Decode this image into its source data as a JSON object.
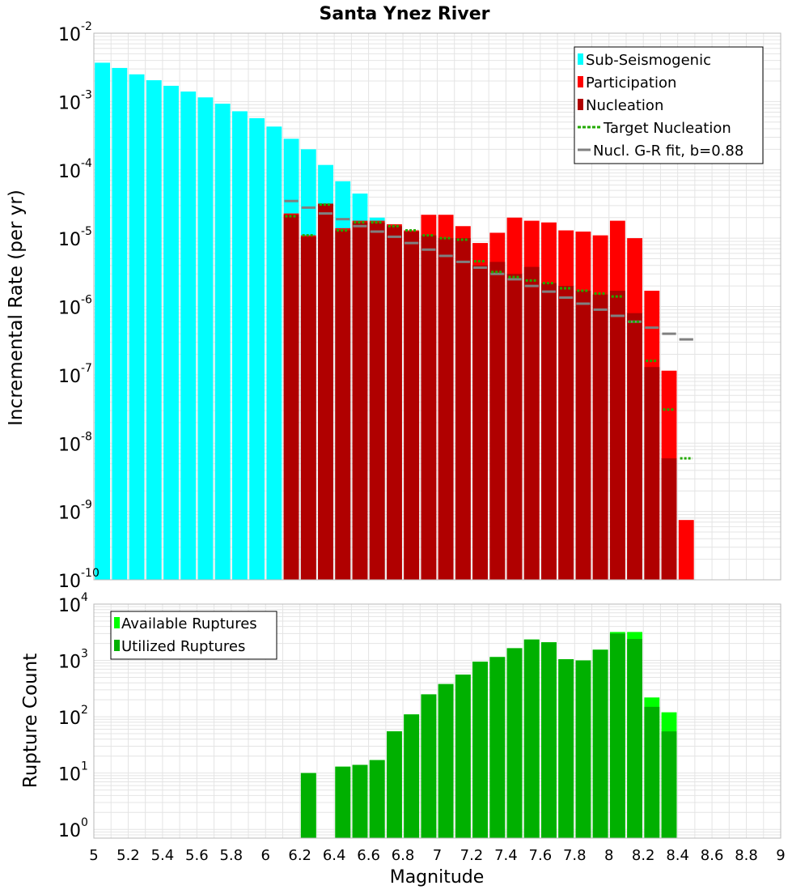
{
  "colors": {
    "sub_seismogenic": "#00ffff",
    "participation": "#ff0000",
    "nucleation": "#b00000",
    "target_nucleation": "#22aa00",
    "gr_fit": "#808080",
    "available": "#00ff00",
    "utilized": "#00b000",
    "grid": "#e4e4e4",
    "frame": "#b8b8b8"
  },
  "chart_data": [
    {
      "type": "bar",
      "title": "Santa Ynez River",
      "xlabel": "",
      "ylabel": "Incremental Rate (per yr)",
      "xlim": [
        5,
        9
      ],
      "ylim": [
        1e-10,
        0.01
      ],
      "yscale": "log",
      "grid": true,
      "legend_position": "top-right",
      "ytick_bases": [
        "10",
        "10",
        "10",
        "10",
        "10",
        "10",
        "10",
        "10",
        "10"
      ],
      "ytick_exponents": [
        "-10",
        "-9",
        "-8",
        "-7",
        "-6",
        "-5",
        "-4",
        "-3",
        "-2"
      ],
      "bin_width": 0.1,
      "series": [
        {
          "name": "Sub-Seismogenic",
          "x": [
            5.05,
            5.15,
            5.25,
            5.35,
            5.45,
            5.55,
            5.65,
            5.75,
            5.85,
            5.95,
            6.05,
            6.15,
            6.25,
            6.35,
            6.45,
            6.55,
            6.65
          ],
          "values": [
            0.0037,
            0.0031,
            0.0025,
            0.00205,
            0.0017,
            0.0014,
            0.00115,
            0.00093,
            0.00072,
            0.00057,
            0.00043,
            0.000285,
            0.0002,
            0.000118,
            6.8e-05,
            4.5e-05,
            2e-05
          ]
        },
        {
          "name": "Participation",
          "x": [
            6.15,
            6.25,
            6.35,
            6.45,
            6.55,
            6.65,
            6.75,
            6.85,
            6.95,
            7.05,
            7.15,
            7.25,
            7.35,
            7.45,
            7.55,
            7.65,
            7.75,
            7.85,
            7.95,
            8.05,
            8.15,
            8.25,
            8.35,
            8.45
          ],
          "values": [
            2.3e-05,
            1.1e-05,
            3.2e-05,
            1.4e-05,
            1.8e-05,
            1.8e-05,
            1.6e-05,
            1.3e-05,
            2.2e-05,
            2.2e-05,
            1.5e-05,
            8.5e-06,
            1.2e-05,
            2e-05,
            1.8e-05,
            1.7e-05,
            1.3e-05,
            1.25e-05,
            1.1e-05,
            1.8e-05,
            1e-05,
            1.7e-06,
            1.15e-07,
            7.5e-10
          ]
        },
        {
          "name": "Nucleation",
          "x": [
            6.15,
            6.25,
            6.35,
            6.45,
            6.55,
            6.65,
            6.75,
            6.85,
            6.95,
            7.05,
            7.15,
            7.25,
            7.35,
            7.45,
            7.55,
            7.65,
            7.75,
            7.85,
            7.95,
            8.05,
            8.15,
            8.25,
            8.35
          ],
          "values": [
            2.2e-05,
            1.05e-05,
            3.2e-05,
            1.3e-05,
            1.7e-05,
            1.7e-05,
            1.5e-05,
            1.25e-05,
            1.1e-05,
            1e-05,
            1e-05,
            4e-06,
            4.5e-06,
            3e-06,
            3.8e-06,
            2.2e-06,
            2e-06,
            1.7e-06,
            1.5e-06,
            1.7e-06,
            8e-07,
            1.3e-07,
            6e-09
          ]
        },
        {
          "name": "Target Nucleation",
          "x": [
            6.15,
            6.25,
            6.35,
            6.45,
            6.55,
            6.65,
            6.75,
            6.85,
            6.95,
            7.05,
            7.15,
            7.25,
            7.35,
            7.45,
            7.55,
            7.65,
            7.75,
            7.85,
            7.95,
            8.05,
            8.15,
            8.25,
            8.35,
            8.45
          ],
          "values": [
            2.1e-05,
            1.1e-05,
            3.1e-05,
            1.3e-05,
            1.7e-05,
            1.7e-05,
            1.5e-05,
            1.3e-05,
            1.1e-05,
            1e-05,
            9.5e-06,
            4.6e-06,
            3.2e-06,
            2.7e-06,
            2.4e-06,
            2.2e-06,
            1.85e-06,
            1.7e-06,
            1.55e-06,
            1.4e-06,
            6e-07,
            1.6e-07,
            3.1e-08,
            6e-09
          ]
        },
        {
          "name": "Nucl. G-R fit, b=0.88",
          "x": [
            6.15,
            6.25,
            6.35,
            6.45,
            6.55,
            6.65,
            6.75,
            6.85,
            6.95,
            7.05,
            7.15,
            7.25,
            7.35,
            7.45,
            7.55,
            7.65,
            7.75,
            7.85,
            7.95,
            8.05,
            8.15,
            8.25,
            8.35,
            8.45
          ],
          "values": [
            3.5e-05,
            2.8e-05,
            2.3e-05,
            1.9e-05,
            1.5e-05,
            1.25e-05,
            1.05e-05,
            8.5e-06,
            6.8e-06,
            5.5e-06,
            4.5e-06,
            3.7e-06,
            3e-06,
            2.5e-06,
            2e-06,
            1.65e-06,
            1.35e-06,
            1.1e-06,
            9e-07,
            7.3e-07,
            6e-07,
            4.9e-07,
            4e-07,
            3.3e-07
          ]
        }
      ]
    },
    {
      "type": "bar",
      "title": "",
      "xlabel": "Magnitude",
      "ylabel": "Rupture Count",
      "xlim": [
        5,
        9
      ],
      "ylim": [
        0.7,
        10000
      ],
      "yscale": "log",
      "grid": true,
      "legend_position": "top-left",
      "xticks": [
        "5",
        "5.2",
        "5.4",
        "5.6",
        "5.8",
        "6",
        "6.2",
        "6.4",
        "6.6",
        "6.8",
        "7",
        "7.2",
        "7.4",
        "7.6",
        "7.8",
        "8",
        "8.2",
        "8.4",
        "8.6",
        "8.8",
        "9"
      ],
      "ytick_bases": [
        "10",
        "10",
        "10",
        "10",
        "10"
      ],
      "ytick_exponents": [
        "0",
        "1",
        "2",
        "3",
        "4"
      ],
      "bin_width": 0.1,
      "series": [
        {
          "name": "Available Ruptures",
          "x": [
            6.25,
            6.45,
            6.55,
            6.65,
            6.75,
            6.85,
            6.95,
            7.05,
            7.15,
            7.25,
            7.35,
            7.45,
            7.55,
            7.65,
            7.75,
            7.85,
            7.95,
            8.05,
            8.15,
            8.25,
            8.35
          ],
          "values": [
            10,
            13,
            14,
            17,
            55,
            110,
            250,
            380,
            560,
            950,
            1150,
            1650,
            2350,
            2100,
            1050,
            1000,
            1550,
            3200,
            3200,
            220,
            120
          ]
        },
        {
          "name": "Utilized Ruptures",
          "x": [
            6.25,
            6.45,
            6.55,
            6.65,
            6.75,
            6.85,
            6.95,
            7.05,
            7.15,
            7.25,
            7.35,
            7.45,
            7.55,
            7.65,
            7.75,
            7.85,
            7.95,
            8.05,
            8.15,
            8.25,
            8.35
          ],
          "values": [
            10,
            13,
            14,
            17,
            55,
            110,
            250,
            380,
            560,
            950,
            1150,
            1650,
            2350,
            2100,
            1050,
            1000,
            1550,
            3000,
            2400,
            150,
            55
          ]
        }
      ]
    }
  ]
}
